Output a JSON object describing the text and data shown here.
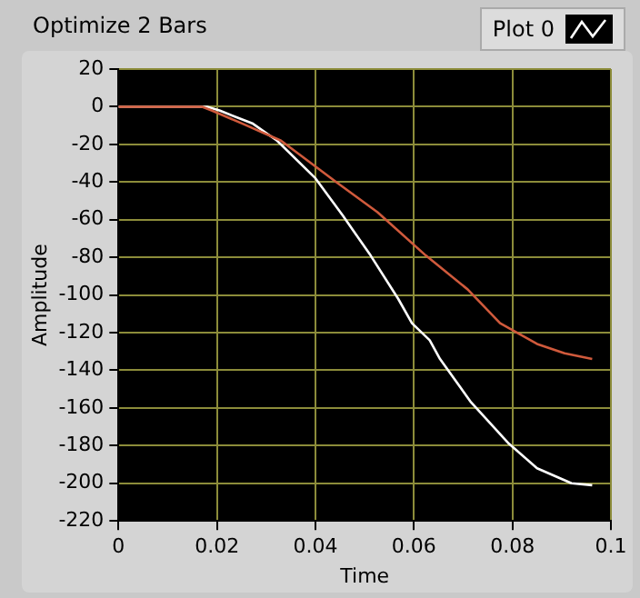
{
  "chart_data": {
    "type": "line",
    "title": "Optimize 2 Bars",
    "xlabel": "Time",
    "ylabel": "Amplitude",
    "xlim": [
      0,
      0.1
    ],
    "xticks": [
      0,
      0.02,
      0.04,
      0.06,
      0.08,
      0.1
    ],
    "ylim": [
      -220,
      20
    ],
    "yticks": [
      20,
      0,
      -20,
      -40,
      -60,
      -80,
      -100,
      -120,
      -140,
      -160,
      -180,
      -200,
      -220
    ],
    "grid": true,
    "legend": "top right",
    "marker": "none",
    "line_style": "solid",
    "series": [
      {
        "name": "Plot 0",
        "color": "#ffffff",
        "x": [
          0,
          0.018,
          0.0205,
          0.0273,
          0.0322,
          0.04,
          0.0456,
          0.0512,
          0.0568,
          0.0596,
          0.0632,
          0.0653,
          0.0716,
          0.0793,
          0.085,
          0.092,
          0.0962
        ],
        "values": [
          0,
          0,
          -2,
          -9,
          -18,
          -38,
          -58,
          -79,
          -102,
          -115,
          -124,
          -134,
          -157,
          -179,
          -192,
          -200,
          -201
        ]
      },
      {
        "color": "#d05a3c",
        "x": [
          0,
          0.017,
          0.0189,
          0.0252,
          0.033,
          0.0442,
          0.0526,
          0.0624,
          0.0709,
          0.0775,
          0.085,
          0.0906,
          0.0962
        ],
        "values": [
          0,
          0,
          -2,
          -9,
          -18,
          -40,
          -56,
          -79,
          -97,
          -115,
          -126,
          -131,
          -134
        ]
      }
    ]
  }
}
